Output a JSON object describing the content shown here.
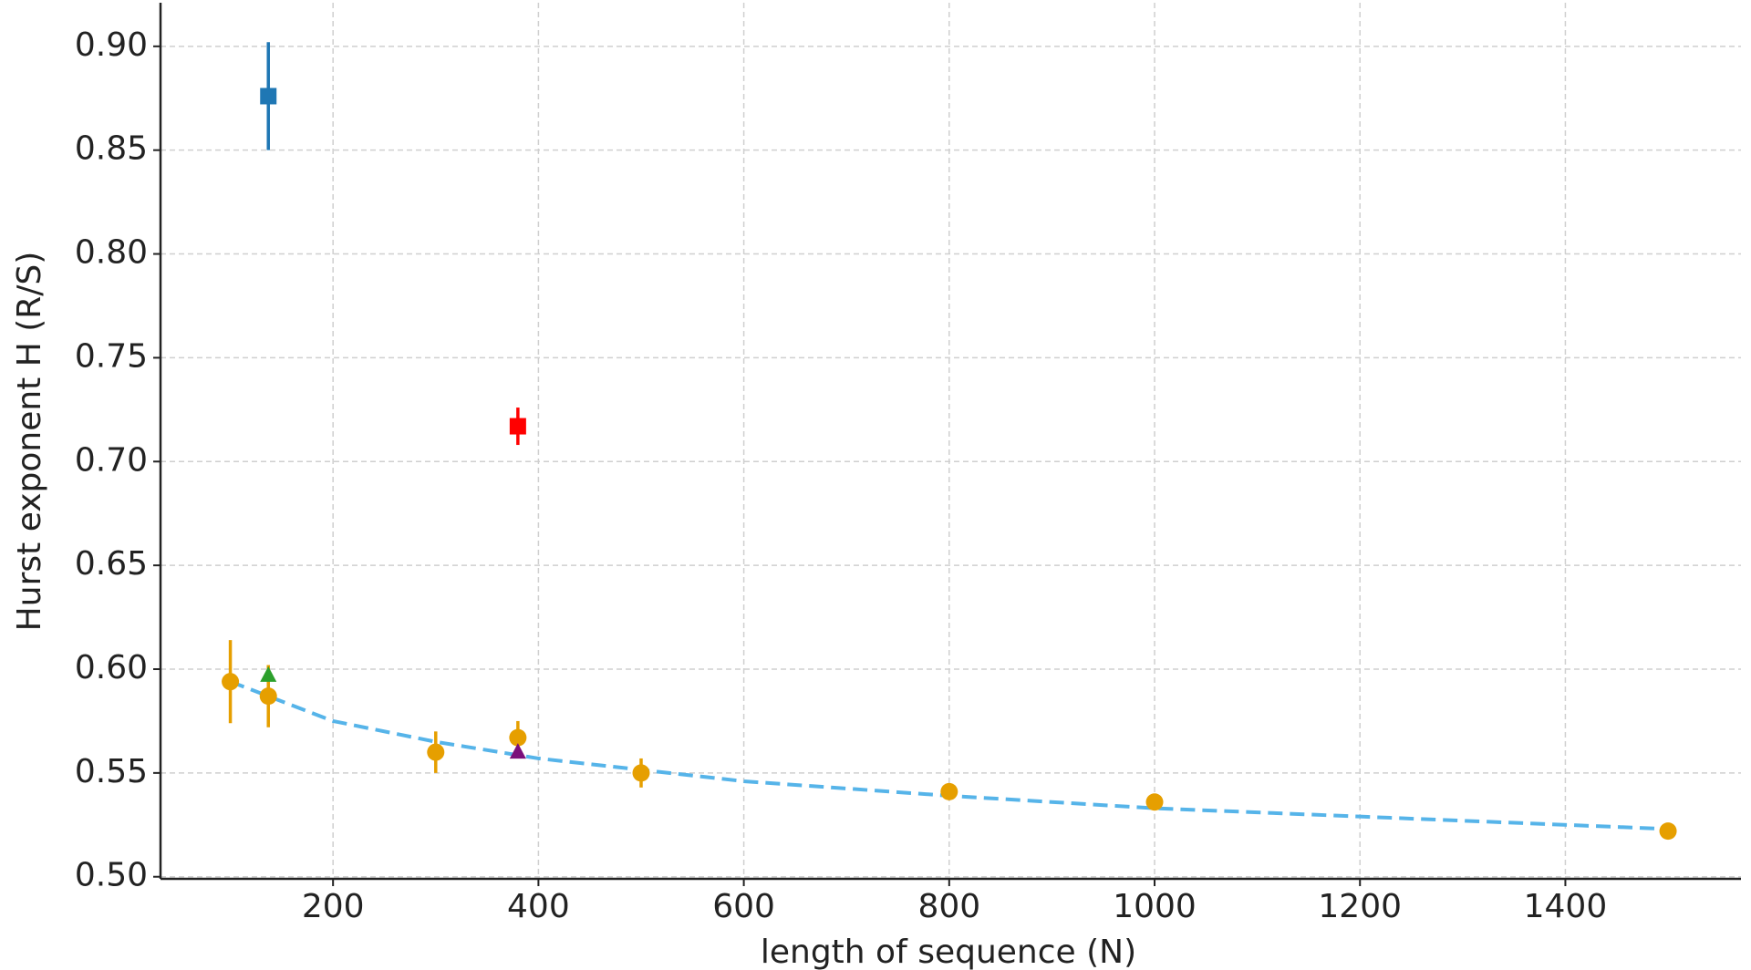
{
  "chart_data": {
    "type": "scatter",
    "x_label": "length of sequence (N)",
    "y_label": "Hurst exponent H (R/S)",
    "xlim": [
      32,
      1571
    ],
    "ylim": [
      0.499,
      0.921
    ],
    "xticks": [
      200,
      400,
      600,
      800,
      1000,
      1200,
      1400
    ],
    "yticks": [
      {
        "value": 0.5,
        "label": "0.50"
      },
      0.55,
      {
        "value": 0.6,
        "label": "0.60"
      },
      0.65,
      {
        "value": 0.7,
        "label": "0.70"
      },
      0.75,
      {
        "value": 0.8,
        "label": "0.80"
      },
      0.85,
      {
        "value": 0.9,
        "label": "0.90"
      }
    ],
    "grid": true,
    "series": [
      {
        "type": "line",
        "color": "#56b4e9",
        "dashed": true,
        "x": [
          100,
          200,
          300,
          400,
          600,
          800,
          1000,
          1200,
          1500
        ],
        "values": [
          0.594,
          0.575,
          0.565,
          0.557,
          0.546,
          0.539,
          0.533,
          0.529,
          0.523
        ]
      },
      {
        "type": "scatter",
        "color": "#1f77b4",
        "marker": "square",
        "x": [
          137
        ],
        "values": [
          0.876
        ],
        "errors": [
          0.026
        ]
      },
      {
        "type": "scatter",
        "color": "#ff0000",
        "marker": "square",
        "x": [
          380
        ],
        "values": [
          0.717
        ],
        "errors": [
          0.009
        ]
      },
      {
        "type": "scatter",
        "color": "#e69f00",
        "marker": "circle",
        "x": [
          100,
          137,
          300,
          380,
          500,
          800,
          1000,
          1500
        ],
        "values": [
          0.594,
          0.587,
          0.56,
          0.567,
          0.55,
          0.541,
          0.536,
          0.522
        ],
        "errors": [
          0.02,
          0.015,
          0.01,
          0.008,
          0.007,
          0.004,
          0.003,
          0.002
        ]
      },
      {
        "type": "scatter",
        "color": "#2ca02c",
        "marker": "triangle",
        "x": [
          137
        ],
        "values": [
          0.597
        ]
      },
      {
        "type": "scatter",
        "color": "#7b0f7b",
        "marker": "triangle",
        "x": [
          380
        ],
        "values": [
          0.56
        ]
      }
    ]
  }
}
